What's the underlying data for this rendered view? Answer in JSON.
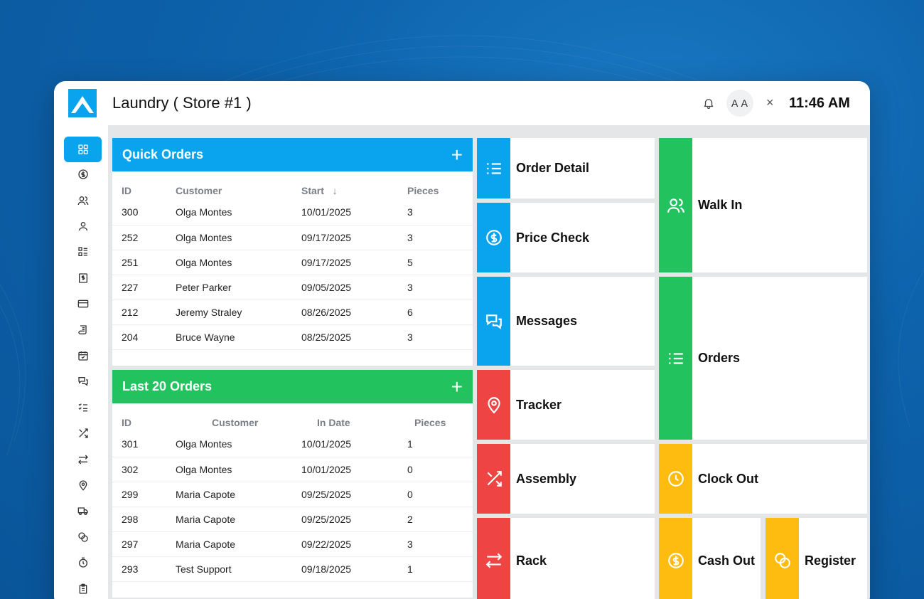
{
  "header": {
    "title": "Laundry ( Store #1 )",
    "avatar_initials": "A A",
    "close_glyph": "×",
    "time": "11:46 AM"
  },
  "sidebar": {
    "items": [
      {
        "icon": "dashboard-icon",
        "active": true
      },
      {
        "icon": "dollar-circle-icon"
      },
      {
        "icon": "users-icon"
      },
      {
        "icon": "user-icon"
      },
      {
        "icon": "list-grid-icon"
      },
      {
        "icon": "invoice-icon"
      },
      {
        "icon": "credit-card-icon"
      },
      {
        "icon": "scroll-icon"
      },
      {
        "icon": "calendar-check-icon"
      },
      {
        "icon": "messages-icon"
      },
      {
        "icon": "checklist-icon"
      },
      {
        "icon": "shuffle-icon"
      },
      {
        "icon": "swap-icon"
      },
      {
        "icon": "location-pin-icon"
      },
      {
        "icon": "truck-icon"
      },
      {
        "icon": "coins-icon"
      },
      {
        "icon": "timer-icon"
      },
      {
        "icon": "clipboard-icon"
      }
    ]
  },
  "quick_orders": {
    "title": "Quick Orders",
    "plus": "+",
    "columns": [
      "ID",
      "Customer",
      "Start",
      "Pieces"
    ],
    "sort_glyph": "↓",
    "rows": [
      [
        "300",
        "Olga Montes",
        "10/01/2025",
        "3"
      ],
      [
        "252",
        "Olga Montes",
        "09/17/2025",
        "3"
      ],
      [
        "251",
        "Olga Montes",
        "09/17/2025",
        "5"
      ],
      [
        "227",
        "Peter Parker",
        "09/05/2025",
        "3"
      ],
      [
        "212",
        "Jeremy Straley",
        "08/26/2025",
        "6"
      ],
      [
        "204",
        "Bruce Wayne",
        "08/25/2025",
        "3"
      ]
    ]
  },
  "last_orders": {
    "title": "Last 20 Orders",
    "plus": "+",
    "columns": [
      "ID",
      "Customer",
      "In Date",
      "Pieces"
    ],
    "rows": [
      [
        "301",
        "Olga Montes",
        "10/01/2025",
        "1"
      ],
      [
        "302",
        "Olga Montes",
        "10/01/2025",
        "0"
      ],
      [
        "299",
        "Maria Capote",
        "09/25/2025",
        "0"
      ],
      [
        "298",
        "Maria Capote",
        "09/25/2025",
        "2"
      ],
      [
        "297",
        "Maria Capote",
        "09/22/2025",
        "3"
      ],
      [
        "293",
        "Test Support",
        "09/18/2025",
        "1"
      ]
    ]
  },
  "tiles": {
    "order_detail": "Order Detail",
    "price_check": "Price Check",
    "messages": "Messages",
    "tracker": "Tracker",
    "assembly": "Assembly",
    "rack": "Rack",
    "walk_in": "Walk In",
    "orders": "Orders",
    "clock_out": "Clock Out",
    "cash_out": "Cash Out",
    "register": "Register"
  },
  "colors": {
    "blue": "#0aa3ee",
    "green": "#22c35e",
    "red": "#ef4444",
    "yellow": "#fdbc0f"
  }
}
